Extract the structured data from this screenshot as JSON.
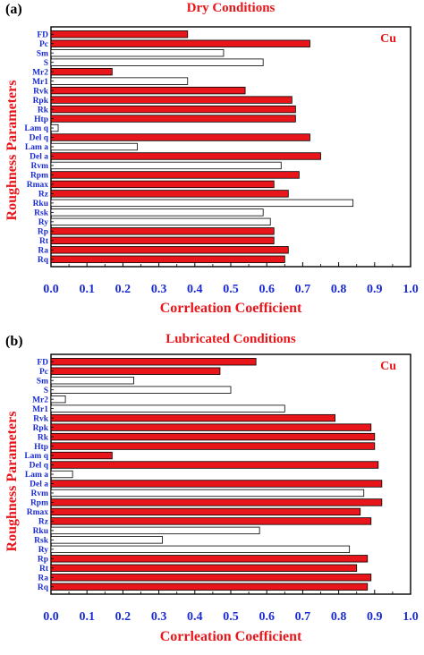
{
  "colors": {
    "highlight": "#e8161a",
    "plain": "#ffffff",
    "tick_text": "#1a2bd6",
    "title_text": "#e8161a"
  },
  "chart_data": [
    {
      "type": "bar",
      "orientation": "horizontal",
      "panel_label": "(a)",
      "title": "Dry Conditions",
      "annotation": "Cu",
      "xlabel": "Corrleation Coefficient",
      "ylabel": "Roughness Parameters",
      "xlim": [
        0,
        1.0
      ],
      "xticks": [
        "0.0",
        "0.1",
        "0.2",
        "0.3",
        "0.4",
        "0.5",
        "0.6",
        "0.7",
        "0.8",
        "0.9",
        "1.0"
      ],
      "grid": false,
      "categories": [
        "FD",
        "Pc",
        "Sm",
        "S",
        "Mr2",
        "Mr1",
        "Rvk",
        "Rpk",
        "Rk",
        "Htp",
        "Lam q",
        "Del q",
        "Lam a",
        "Del a",
        "Rvm",
        "Rpm",
        "Rmax",
        "Rz",
        "Rku",
        "Rsk",
        "Ry",
        "Rp",
        "Rt",
        "Ra",
        "Rq"
      ],
      "values": [
        0.38,
        0.72,
        0.48,
        0.59,
        0.17,
        0.38,
        0.54,
        0.67,
        0.68,
        0.68,
        0.02,
        0.72,
        0.24,
        0.75,
        0.64,
        0.69,
        0.62,
        0.66,
        0.84,
        0.59,
        0.61,
        0.62,
        0.62,
        0.66,
        0.65
      ],
      "highlighted": [
        true,
        true,
        false,
        false,
        true,
        false,
        true,
        true,
        true,
        true,
        false,
        true,
        false,
        true,
        false,
        true,
        true,
        true,
        false,
        false,
        false,
        true,
        true,
        true,
        true
      ]
    },
    {
      "type": "bar",
      "orientation": "horizontal",
      "panel_label": "(b)",
      "title": "Lubricated Conditions",
      "annotation": "Cu",
      "xlabel": "Corrleation Coefficient",
      "ylabel": "Roughness Parameters",
      "xlim": [
        0,
        1.0
      ],
      "xticks": [
        "0.0",
        "0.1",
        "0.2",
        "0.3",
        "0.4",
        "0.5",
        "0.6",
        "0.7",
        "0.8",
        "0.9",
        "1.0"
      ],
      "grid": false,
      "categories": [
        "FD",
        "Pc",
        "Sm",
        "S",
        "Mr2",
        "Mr1",
        "Rvk",
        "Rpk",
        "Rk",
        "Htp",
        "Lam q",
        "Del q",
        "Lam a",
        "Del a",
        "Rvm",
        "Rpm",
        "Rmax",
        "Rz",
        "Rku",
        "Rsk",
        "Ry",
        "Rp",
        "Rt",
        "Ra",
        "Rq"
      ],
      "values": [
        0.57,
        0.47,
        0.23,
        0.5,
        0.04,
        0.65,
        0.79,
        0.89,
        0.9,
        0.9,
        0.17,
        0.91,
        0.06,
        0.92,
        0.87,
        0.92,
        0.86,
        0.89,
        0.58,
        0.31,
        0.83,
        0.88,
        0.85,
        0.89,
        0.88
      ],
      "highlighted": [
        true,
        true,
        false,
        false,
        false,
        false,
        true,
        true,
        true,
        true,
        true,
        true,
        false,
        true,
        false,
        true,
        true,
        true,
        false,
        false,
        false,
        true,
        true,
        true,
        true
      ]
    }
  ]
}
